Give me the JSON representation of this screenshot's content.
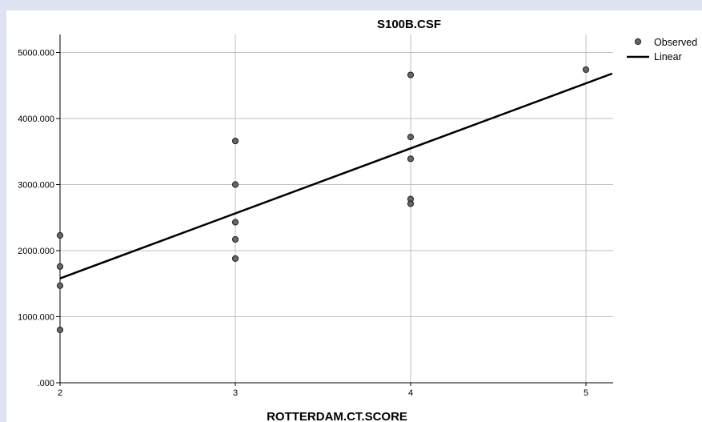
{
  "chart_data": {
    "type": "scatter",
    "title": "S100B.CSF",
    "xlabel": "ROTTERDAM.CT.SCORE",
    "ylabel": "",
    "xlim": [
      2,
      5.15
    ],
    "ylim": [
      0,
      5280
    ],
    "x_ticks": [
      2,
      3,
      4,
      5
    ],
    "x_tick_labels": [
      "2",
      "3",
      "4",
      "5"
    ],
    "y_ticks": [
      0,
      1000,
      2000,
      3000,
      4000,
      5000
    ],
    "y_tick_labels": [
      ".000",
      "1000.000",
      "2000.000",
      "3000.000",
      "4000.000",
      "5000.000"
    ],
    "grid": true,
    "legend_position": "top-right",
    "series": [
      {
        "name": "Observed",
        "marker": "circle",
        "color": "#666666",
        "points": [
          {
            "x": 2,
            "y": 2230
          },
          {
            "x": 2,
            "y": 1760
          },
          {
            "x": 2,
            "y": 1470
          },
          {
            "x": 2,
            "y": 800
          },
          {
            "x": 3,
            "y": 3660
          },
          {
            "x": 3,
            "y": 3000
          },
          {
            "x": 3,
            "y": 2430
          },
          {
            "x": 3,
            "y": 2170
          },
          {
            "x": 3,
            "y": 1880
          },
          {
            "x": 4,
            "y": 4660
          },
          {
            "x": 4,
            "y": 3720
          },
          {
            "x": 4,
            "y": 3390
          },
          {
            "x": 4,
            "y": 2780
          },
          {
            "x": 4,
            "y": 2710
          },
          {
            "x": 5,
            "y": 4740
          }
        ]
      },
      {
        "name": "Linear",
        "type": "line",
        "color": "#000000",
        "points": [
          {
            "x": 2,
            "y": 1580
          },
          {
            "x": 5.15,
            "y": 4680
          }
        ]
      }
    ]
  }
}
